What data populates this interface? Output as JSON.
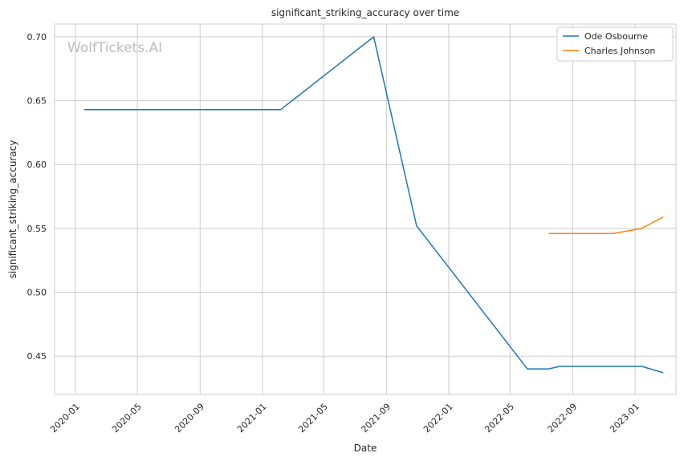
{
  "chart_data": {
    "type": "line",
    "title": "significant_striking_accuracy over time",
    "xlabel": "Date",
    "ylabel": "significant_striking_accuracy",
    "watermark": "WolfTickets.AI",
    "x_ticks": [
      "2020-01",
      "2020-05",
      "2020-09",
      "2021-01",
      "2021-05",
      "2021-09",
      "2022-01",
      "2022-05",
      "2022-09",
      "2023-01"
    ],
    "y_ticks": [
      "0.45",
      "0.50",
      "0.55",
      "0.60",
      "0.65",
      "0.70"
    ],
    "xlim": [
      "2019-11-21",
      "2023-03-22"
    ],
    "ylim": [
      0.42,
      0.71
    ],
    "grid": true,
    "legend_position": "top-right",
    "series": [
      {
        "name": "Ode Osbourne",
        "color": "#1f77b4",
        "points": [
          {
            "x": "2020-01-18",
            "y": 0.643
          },
          {
            "x": "2021-02-06",
            "y": 0.643
          },
          {
            "x": "2021-08-07",
            "y": 0.7
          },
          {
            "x": "2021-10-30",
            "y": 0.552
          },
          {
            "x": "2022-06-04",
            "y": 0.44
          },
          {
            "x": "2022-07-16",
            "y": 0.44
          },
          {
            "x": "2022-08-06",
            "y": 0.442
          },
          {
            "x": "2023-01-14",
            "y": 0.442
          },
          {
            "x": "2023-02-25",
            "y": 0.437
          }
        ]
      },
      {
        "name": "Charles Johnson",
        "color": "#ff7f0e",
        "points": [
          {
            "x": "2022-07-16",
            "y": 0.546
          },
          {
            "x": "2022-11-19",
            "y": 0.546
          },
          {
            "x": "2023-01-14",
            "y": 0.55
          },
          {
            "x": "2023-02-25",
            "y": 0.559
          }
        ]
      }
    ]
  }
}
